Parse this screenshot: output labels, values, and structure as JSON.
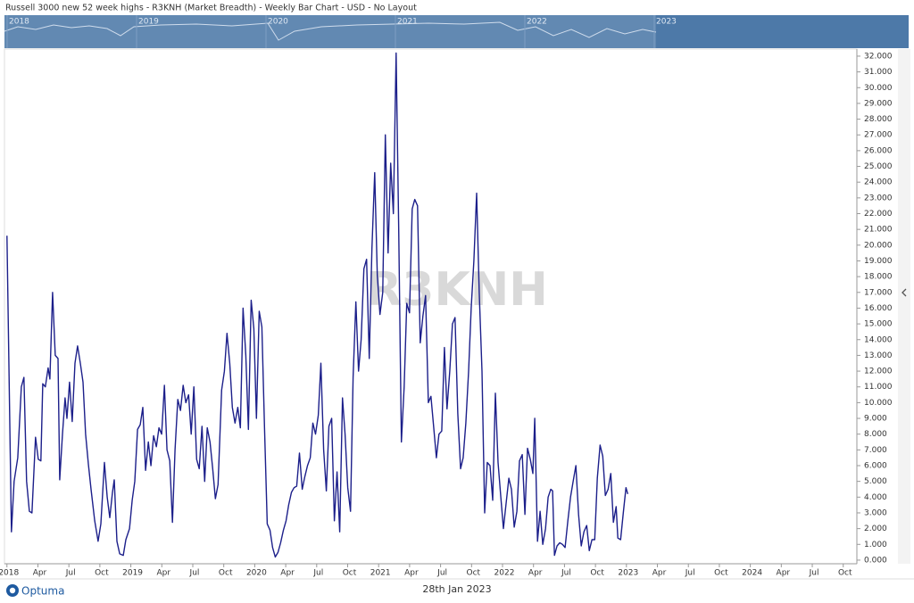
{
  "header": {
    "title": "Russell 3000 new 52 week highs - R3KNH (Market Breadth) - Weekly Bar Chart - USD - No Layout"
  },
  "navigator": {
    "labels": [
      "2018",
      "2019",
      "2020",
      "2021",
      "2022",
      "2023"
    ]
  },
  "chart_data": {
    "type": "line",
    "watermark": "R3KNH",
    "color": "#1c1f8a",
    "xlim": [
      2017.98,
      2024.86
    ],
    "ylim": [
      -230,
      32450
    ],
    "xticks": [
      {
        "value": 2018,
        "label": "2018"
      },
      {
        "value": 2018.25,
        "label": "Apr"
      },
      {
        "value": 2018.5,
        "label": "Jul"
      },
      {
        "value": 2018.75,
        "label": "Oct"
      },
      {
        "value": 2019,
        "label": "2019"
      },
      {
        "value": 2019.25,
        "label": "Apr"
      },
      {
        "value": 2019.5,
        "label": "Jul"
      },
      {
        "value": 2019.75,
        "label": "Oct"
      },
      {
        "value": 2020,
        "label": "2020"
      },
      {
        "value": 2020.25,
        "label": "Apr"
      },
      {
        "value": 2020.5,
        "label": "Jul"
      },
      {
        "value": 2020.75,
        "label": "Oct"
      },
      {
        "value": 2021,
        "label": "2021"
      },
      {
        "value": 2021.25,
        "label": "Apr"
      },
      {
        "value": 2021.5,
        "label": "Jul"
      },
      {
        "value": 2021.75,
        "label": "Oct"
      },
      {
        "value": 2022,
        "label": "2022"
      },
      {
        "value": 2022.25,
        "label": "Apr"
      },
      {
        "value": 2022.5,
        "label": "Jul"
      },
      {
        "value": 2022.75,
        "label": "Oct"
      },
      {
        "value": 2023,
        "label": "2023"
      },
      {
        "value": 2023.25,
        "label": "Apr"
      },
      {
        "value": 2023.5,
        "label": "Jul"
      },
      {
        "value": 2023.75,
        "label": "Oct"
      },
      {
        "value": 2024,
        "label": "2024"
      },
      {
        "value": 2024.25,
        "label": "Apr"
      },
      {
        "value": 2024.5,
        "label": "Jul"
      },
      {
        "value": 2024.75,
        "label": "Oct"
      }
    ],
    "yticks": [
      {
        "value": 0,
        "label": "0.000"
      },
      {
        "value": 1000,
        "label": "1.000"
      },
      {
        "value": 2000,
        "label": "2.000"
      },
      {
        "value": 3000,
        "label": "3.000"
      },
      {
        "value": 4000,
        "label": "4.000"
      },
      {
        "value": 5000,
        "label": "5.000"
      },
      {
        "value": 6000,
        "label": "6.000"
      },
      {
        "value": 7000,
        "label": "7.000"
      },
      {
        "value": 8000,
        "label": "8.000"
      },
      {
        "value": 9000,
        "label": "9.000"
      },
      {
        "value": 10000,
        "label": "10.000"
      },
      {
        "value": 11000,
        "label": "11.000"
      },
      {
        "value": 12000,
        "label": "12.000"
      },
      {
        "value": 13000,
        "label": "13.000"
      },
      {
        "value": 14000,
        "label": "14.000"
      },
      {
        "value": 15000,
        "label": "15.000"
      },
      {
        "value": 16000,
        "label": "16.000"
      },
      {
        "value": 17000,
        "label": "17.000"
      },
      {
        "value": 18000,
        "label": "18.000"
      },
      {
        "value": 19000,
        "label": "19.000"
      },
      {
        "value": 20000,
        "label": "20.000"
      },
      {
        "value": 21000,
        "label": "21.000"
      },
      {
        "value": 22000,
        "label": "22.000"
      },
      {
        "value": 23000,
        "label": "23.000"
      },
      {
        "value": 24000,
        "label": "24.000"
      },
      {
        "value": 25000,
        "label": "25.000"
      },
      {
        "value": 26000,
        "label": "26.000"
      },
      {
        "value": 27000,
        "label": "27.000"
      },
      {
        "value": 28000,
        "label": "28.000"
      },
      {
        "value": 29000,
        "label": "29.000"
      },
      {
        "value": 30000,
        "label": "30.000"
      },
      {
        "value": 31000,
        "label": "31.000"
      },
      {
        "value": 32000,
        "label": "32.000"
      }
    ],
    "x": [
      2018.0,
      2018.036,
      2018.058,
      2018.087,
      2018.116,
      2018.137,
      2018.159,
      2018.181,
      2018.202,
      2018.231,
      2018.253,
      2018.274,
      2018.289,
      2018.31,
      2018.332,
      2018.347,
      2018.368,
      2018.39,
      2018.412,
      2018.426,
      2018.448,
      2018.469,
      2018.484,
      2018.505,
      2018.527,
      2018.549,
      2018.57,
      2018.592,
      2018.614,
      2018.635,
      2018.657,
      2018.679,
      2018.708,
      2018.736,
      2018.758,
      2018.787,
      2018.809,
      2018.83,
      2018.852,
      2018.866,
      2018.888,
      2018.91,
      2018.939,
      2018.96,
      2018.989,
      2019.011,
      2019.032,
      2019.054,
      2019.076,
      2019.097,
      2019.119,
      2019.141,
      2019.162,
      2019.184,
      2019.206,
      2019.227,
      2019.249,
      2019.271,
      2019.292,
      2019.314,
      2019.336,
      2019.357,
      2019.379,
      2019.401,
      2019.422,
      2019.444,
      2019.466,
      2019.487,
      2019.509,
      2019.531,
      2019.552,
      2019.574,
      2019.596,
      2019.617,
      2019.639,
      2019.661,
      2019.682,
      2019.704,
      2019.733,
      2019.755,
      2019.776,
      2019.798,
      2019.819,
      2019.841,
      2019.863,
      2019.884,
      2019.906,
      2019.928,
      2019.949,
      2019.971,
      2019.993,
      2020.014,
      2020.036,
      2020.058,
      2020.079,
      2020.101,
      2020.123,
      2020.144,
      2020.166,
      2020.188,
      2020.209,
      2020.231,
      2020.253,
      2020.274,
      2020.296,
      2020.318,
      2020.339,
      2020.361,
      2020.383,
      2020.404,
      2020.426,
      2020.448,
      2020.469,
      2020.491,
      2020.513,
      2020.534,
      2020.556,
      2020.578,
      2020.599,
      2020.621,
      2020.643,
      2020.664,
      2020.686,
      2020.708,
      2020.729,
      2020.751,
      2020.773,
      2020.794,
      2020.816,
      2020.838,
      2020.859,
      2020.881,
      2020.903,
      2020.924,
      2020.946,
      2020.968,
      2020.989,
      2021.011,
      2021.033,
      2021.054,
      2021.076,
      2021.097,
      2021.119,
      2021.141,
      2021.162,
      2021.184,
      2021.206,
      2021.227,
      2021.249,
      2021.271,
      2021.292,
      2021.314,
      2021.336,
      2021.357,
      2021.379,
      2021.401,
      2021.422,
      2021.444,
      2021.466,
      2021.487,
      2021.509,
      2021.531,
      2021.552,
      2021.574,
      2021.596,
      2021.617,
      2021.639,
      2021.661,
      2021.682,
      2021.704,
      2021.726,
      2021.747,
      2021.769,
      2021.791,
      2021.812,
      2021.834,
      2021.856,
      2021.877,
      2021.899,
      2021.921,
      2021.942,
      2021.964,
      2021.986,
      2022.007,
      2022.029,
      2022.051,
      2022.072,
      2022.094,
      2022.116,
      2022.137,
      2022.159,
      2022.181,
      2022.202,
      2022.224,
      2022.245,
      2022.26,
      2022.282,
      2022.303,
      2022.325,
      2022.347,
      2022.368,
      2022.39,
      2022.404,
      2022.419,
      2022.44,
      2022.462,
      2022.484,
      2022.505,
      2022.527,
      2022.549,
      2022.57,
      2022.592,
      2022.614,
      2022.635,
      2022.657,
      2022.679,
      2022.7,
      2022.722,
      2022.744,
      2022.765,
      2022.787,
      2022.809,
      2022.83,
      2022.852,
      2022.874,
      2022.895,
      2022.917,
      2022.931,
      2022.953,
      2022.975,
      2022.996,
      2023.011
    ],
    "values": [
      20600,
      1800,
      5000,
      6500,
      11000,
      11600,
      5000,
      3100,
      3000,
      7800,
      6400,
      6300,
      11200,
      11000,
      12200,
      11500,
      17000,
      13000,
      12800,
      5100,
      8000,
      10300,
      9000,
      11300,
      8800,
      12500,
      13600,
      12500,
      11300,
      8000,
      6100,
      4500,
      2500,
      1200,
      2300,
      6200,
      4000,
      2700,
      4300,
      5100,
      1200,
      400,
      300,
      1300,
      2000,
      3800,
      5000,
      8300,
      8600,
      9700,
      5700,
      7500,
      6000,
      7900,
      7200,
      8400,
      8000,
      11100,
      7000,
      6300,
      2400,
      7000,
      10200,
      9500,
      11100,
      10000,
      10500,
      8000,
      11000,
      6400,
      5800,
      8500,
      5000,
      8400,
      7500,
      5800,
      3900,
      4800,
      10800,
      12000,
      14400,
      12500,
      9700,
      8700,
      9700,
      8400,
      16000,
      13000,
      8300,
      16500,
      14700,
      9000,
      15800,
      14800,
      8300,
      2300,
      1900,
      800,
      200,
      500,
      1100,
      1900,
      2500,
      3500,
      4300,
      4600,
      4700,
      6800,
      4500,
      5300,
      6000,
      6500,
      8700,
      8000,
      9200,
      12500,
      7000,
      4400,
      8500,
      9000,
      2500,
      5600,
      1800,
      10300,
      8000,
      4600,
      3100,
      11600,
      16400,
      12000,
      14000,
      18500,
      19100,
      12800,
      19800,
      24600,
      18100,
      15600,
      17000,
      27000,
      19500,
      25200,
      22000,
      32200,
      21000,
      7500,
      11000,
      16300,
      15700,
      22300,
      22900,
      22500,
      13800,
      15500,
      16800,
      10000,
      10400,
      8500,
      6500,
      8000,
      8200,
      13500,
      9600,
      12000,
      15000,
      15400,
      9300,
      5800,
      6500,
      8700,
      12000,
      16000,
      19000,
      23300,
      17000,
      12000,
      3000,
      6200,
      6000,
      3800,
      10600,
      6200,
      4000,
      2000,
      3600,
      5200,
      4500,
      2100,
      3100,
      6300,
      6700,
      2900,
      7100,
      6400,
      5500,
      9000,
      1200,
      3100,
      1000,
      2000,
      4000,
      4500,
      4400,
      300,
      900,
      1100,
      1000,
      800,
      2500,
      4000,
      5000,
      6000,
      2900,
      900,
      1800,
      2200,
      600,
      1300,
      1300,
      5200,
      7300,
      6600,
      4100,
      4500,
      5500,
      2400,
      3400,
      1400,
      1300,
      3000,
      4600,
      4200
    ]
  },
  "footer": {
    "date": "28th Jan 2023",
    "logo": "Optuma"
  }
}
